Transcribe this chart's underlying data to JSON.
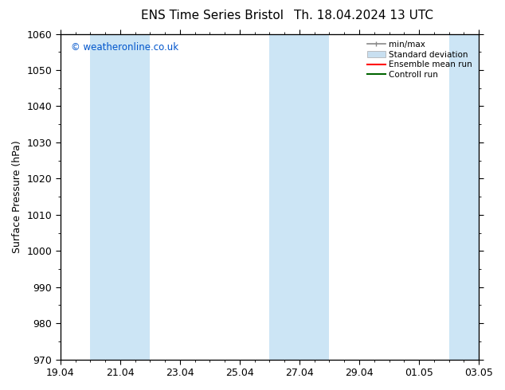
{
  "title_left": "ENS Time Series Bristol",
  "title_right": "Th. 18.04.2024 13 UTC",
  "ylabel": "Surface Pressure (hPa)",
  "ylim": [
    970,
    1060
  ],
  "yticks": [
    970,
    980,
    990,
    1000,
    1010,
    1020,
    1030,
    1040,
    1050,
    1060
  ],
  "xlabels": [
    "19.04",
    "21.04",
    "23.04",
    "25.04",
    "27.04",
    "29.04",
    "01.05",
    "03.05"
  ],
  "xmin": 0,
  "xmax": 14,
  "xtick_positions": [
    0,
    2,
    4,
    6,
    8,
    10,
    12,
    14
  ],
  "shaded_bands": [
    {
      "x_start": 1.0,
      "x_end": 3.0,
      "color": "#cce5f5"
    },
    {
      "x_start": 7.0,
      "x_end": 9.0,
      "color": "#cce5f5"
    },
    {
      "x_start": 13.0,
      "x_end": 14.0,
      "color": "#cce5f5"
    }
  ],
  "watermark": "© weatheronline.co.uk",
  "watermark_color": "#0055cc",
  "background_color": "#ffffff",
  "legend_entries": [
    {
      "label": "min/max",
      "color": "#888888",
      "lw": 1.2
    },
    {
      "label": "Standard deviation",
      "color": "#c8dff0",
      "lw": 8
    },
    {
      "label": "Ensemble mean run",
      "color": "#ff0000",
      "lw": 1.5
    },
    {
      "label": "Controll run",
      "color": "#006400",
      "lw": 1.5
    }
  ],
  "title_fontsize": 11,
  "tick_fontsize": 9,
  "label_fontsize": 9
}
